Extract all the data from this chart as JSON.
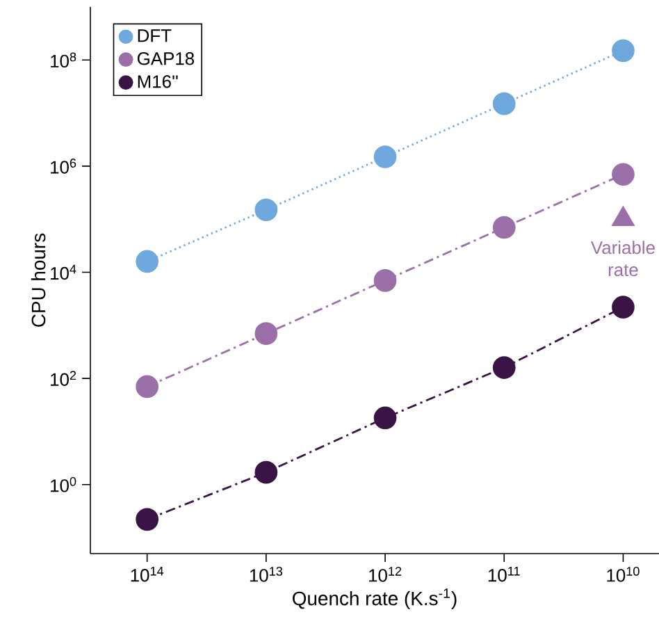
{
  "chart_data": {
    "type": "line",
    "xlabel": "Quench rate (K.s$^{-1}$)",
    "ylabel": "CPU hours",
    "log": "xy",
    "legend": "top left",
    "grid": false,
    "x": [
      100000000000000.0,
      10000000000000.0,
      1000000000000.0,
      100000000000.0,
      10000000000.0
    ],
    "xlim": [
      300000000000000.0,
      5000000000.0
    ],
    "xticks": [
      {
        "value": 100000000000000.0,
        "label": "10$^{14}$"
      },
      {
        "value": 10000000000000.0,
        "label": "10$^{13}$"
      },
      {
        "value": 1000000000000.0,
        "label": "10$^{12}$"
      },
      {
        "value": 100000000000.0,
        "label": "10$^{11}$"
      },
      {
        "value": 10000000000.0,
        "label": "10$^{10}$"
      }
    ],
    "ylim": [
      0.05,
      1000000000.0
    ],
    "yticks": [
      {
        "value": 1,
        "label": "10$^{0}$"
      },
      {
        "value": 100,
        "label": "10$^{2}$"
      },
      {
        "value": 10000,
        "label": "10$^{4}$"
      },
      {
        "value": 1000000,
        "label": "10$^{6}$"
      },
      {
        "value": 100000000,
        "label": "10$^{8}$"
      }
    ],
    "series": [
      {
        "name": "DFT",
        "color": "#6fa8dc",
        "line_style": "dotted",
        "marker": "circle",
        "values": [
          16000,
          150000,
          1500000,
          15000000,
          150000000
        ]
      },
      {
        "name": "GAP18",
        "color": "#9b6fa8",
        "line_style": "dashdot",
        "marker": "circle",
        "values": [
          70,
          700,
          7000,
          70000,
          700000
        ]
      },
      {
        "name": "M16''",
        "color": "#3b1446",
        "line_style": "dashdot",
        "marker": "circle",
        "values": [
          0.22,
          1.7,
          18,
          160,
          2200
        ]
      },
      {
        "type": "scatter",
        "color": "#9b6fa8",
        "marker": "triangle",
        "x": [
          10000000000.0
        ],
        "values": [
          100000
        ]
      }
    ],
    "annotations": [
      {
        "text": "Variable rate",
        "x": 10000000000.0,
        "y": 100000
      }
    ]
  }
}
